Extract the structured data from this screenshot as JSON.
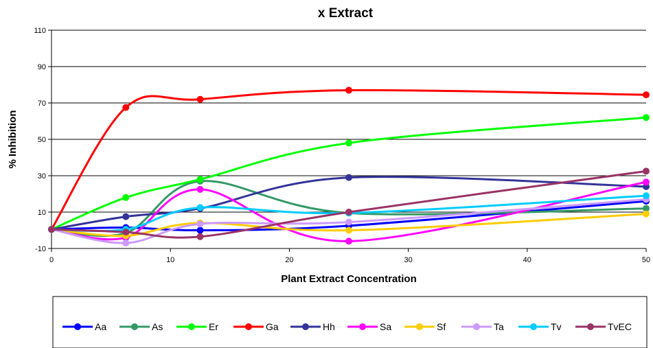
{
  "chart_data": {
    "type": "line",
    "title": "x Extract",
    "xlabel": "Plant Extract Concentration",
    "ylabel": "% Inhibition",
    "xlim": [
      0,
      50
    ],
    "ylim": [
      -10,
      110
    ],
    "xticks": [
      0,
      10,
      20,
      30,
      40,
      50
    ],
    "yticks": [
      -10,
      10,
      30,
      50,
      70,
      90,
      110
    ],
    "grid": "horizontal",
    "legend_position": "bottom",
    "x": [
      0,
      6.25,
      12.5,
      25,
      50
    ],
    "series": [
      {
        "name": "Aa",
        "color": "#0000ff",
        "values": [
          0.5,
          1.5,
          0.0,
          2.5,
          16.0
        ]
      },
      {
        "name": "As",
        "color": "#339966",
        "values": [
          0.5,
          -1.5,
          27.0,
          9.5,
          12.0
        ]
      },
      {
        "name": "Er",
        "color": "#00ff00",
        "values": [
          0.5,
          18.0,
          28.0,
          48.0,
          62.0
        ]
      },
      {
        "name": "Ga",
        "color": "#ff0000",
        "values": [
          0.5,
          67.5,
          72.0,
          77.0,
          74.5
        ]
      },
      {
        "name": "Hh",
        "color": "#333399",
        "values": [
          0.5,
          7.5,
          12.0,
          29.0,
          24.0
        ]
      },
      {
        "name": "Sa",
        "color": "#ff00ff",
        "values": [
          0.5,
          -4.0,
          22.5,
          -6.0,
          26.5
        ]
      },
      {
        "name": "Sf",
        "color": "#ffcc00",
        "values": [
          0.5,
          -3.0,
          4.0,
          0.0,
          9.0
        ]
      },
      {
        "name": "Ta",
        "color": "#cc99ff",
        "values": [
          0.5,
          -7.0,
          3.5,
          4.5,
          17.0
        ]
      },
      {
        "name": "Tv",
        "color": "#00ccff",
        "values": [
          0.5,
          0.5,
          12.5,
          9.5,
          19.0
        ]
      },
      {
        "name": "TvEC",
        "color": "#993366",
        "values": [
          0.5,
          -1.0,
          -3.5,
          10.0,
          32.5
        ]
      }
    ]
  }
}
